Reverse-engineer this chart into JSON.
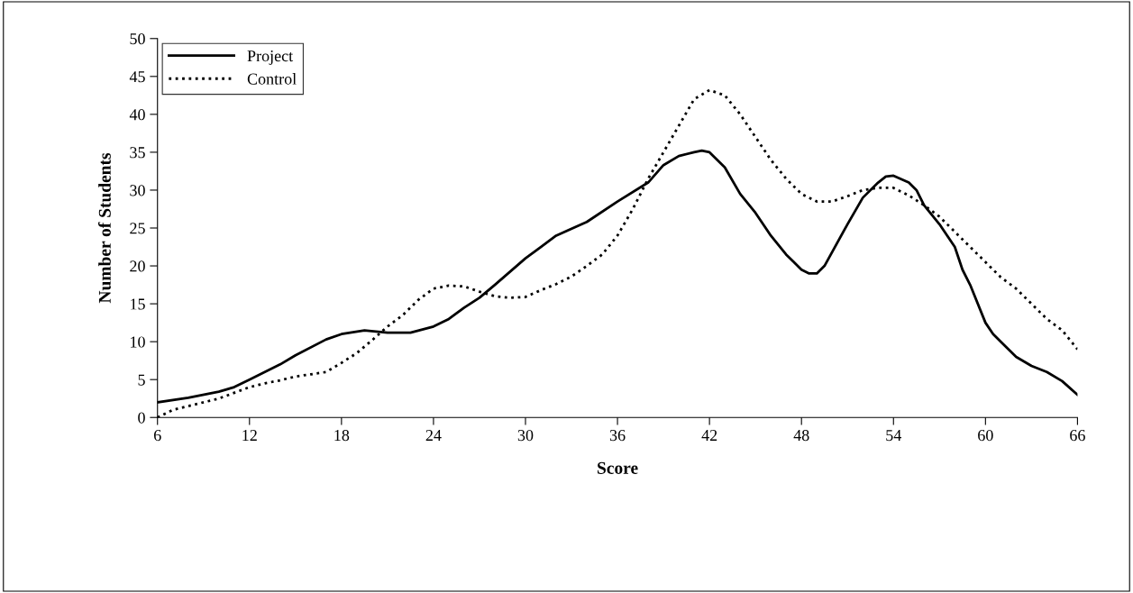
{
  "chart_data": {
    "type": "line",
    "xlabel": "Score",
    "ylabel": "Number of Students",
    "xlim": [
      6,
      66
    ],
    "xticks": [
      6,
      12,
      18,
      24,
      30,
      36,
      42,
      48,
      54,
      60,
      66
    ],
    "ylim": [
      0,
      50
    ],
    "yticks": [
      0,
      5,
      10,
      15,
      20,
      25,
      30,
      35,
      40,
      45,
      50
    ],
    "grid": false,
    "legend": "top left",
    "marker": "none",
    "series": [
      {
        "name": "Project",
        "color": "#000000",
        "line_style": "solid",
        "x": [
          6,
          8,
          10,
          11,
          12,
          14,
          15,
          17,
          18,
          19.5,
          21,
          22.5,
          24,
          25,
          26,
          27,
          28,
          30,
          31,
          32,
          34,
          36,
          38,
          39,
          40,
          41,
          41.5,
          42,
          43,
          44,
          45,
          46,
          47,
          47.5,
          48,
          48.5,
          49,
          49.5,
          51,
          52,
          53,
          53.5,
          54,
          55,
          55.5,
          56,
          57,
          58,
          58.5,
          59,
          60,
          60.5,
          61,
          62,
          63,
          64,
          65,
          66
        ],
        "values": [
          2,
          2.6,
          3.4,
          4,
          5,
          7,
          8.2,
          10.3,
          11,
          11.5,
          11.2,
          11.2,
          12,
          13,
          14.5,
          15.8,
          17.5,
          21,
          22.5,
          24,
          25.8,
          28.5,
          31,
          33.3,
          34.5,
          35,
          35.2,
          35,
          33,
          29.5,
          27,
          24,
          21.5,
          20.5,
          19.5,
          19,
          19,
          20,
          25.5,
          29,
          31,
          31.8,
          31.9,
          31,
          30,
          28,
          25.5,
          22.5,
          19.5,
          17.5,
          12.5,
          11,
          10,
          8,
          6.8,
          6,
          4.8,
          3
        ]
      },
      {
        "name": "Control",
        "color": "#000000",
        "line_style": "dotted",
        "x": [
          6,
          7,
          8,
          10,
          12,
          13,
          14,
          15,
          16,
          17,
          18,
          19,
          20,
          21,
          22,
          23,
          24,
          25,
          26,
          27,
          28,
          29,
          30,
          31,
          32,
          33,
          34,
          35,
          36,
          37,
          38,
          39,
          40,
          41,
          42,
          43,
          44,
          45,
          46,
          47,
          48,
          49,
          50,
          51,
          52,
          53,
          54,
          55,
          56,
          57,
          58,
          59,
          60,
          61,
          62,
          63,
          64,
          65,
          66
        ],
        "values": [
          0,
          1,
          1.5,
          2.5,
          4,
          4.5,
          4.9,
          5.4,
          5.7,
          6,
          7.2,
          8.5,
          10.2,
          12,
          13.5,
          15.5,
          17,
          17.4,
          17.3,
          16.6,
          16,
          15.8,
          15.9,
          16.8,
          17.6,
          18.6,
          20,
          21.5,
          24,
          27.5,
          31.5,
          35,
          38.5,
          42,
          43.2,
          42.5,
          40,
          37,
          34,
          31.5,
          29.5,
          28.5,
          28.5,
          29.2,
          30,
          30.3,
          30.3,
          29.3,
          28,
          26.5,
          24.5,
          22.5,
          20.5,
          18.5,
          17,
          15,
          13,
          11.5,
          9
        ]
      }
    ]
  }
}
